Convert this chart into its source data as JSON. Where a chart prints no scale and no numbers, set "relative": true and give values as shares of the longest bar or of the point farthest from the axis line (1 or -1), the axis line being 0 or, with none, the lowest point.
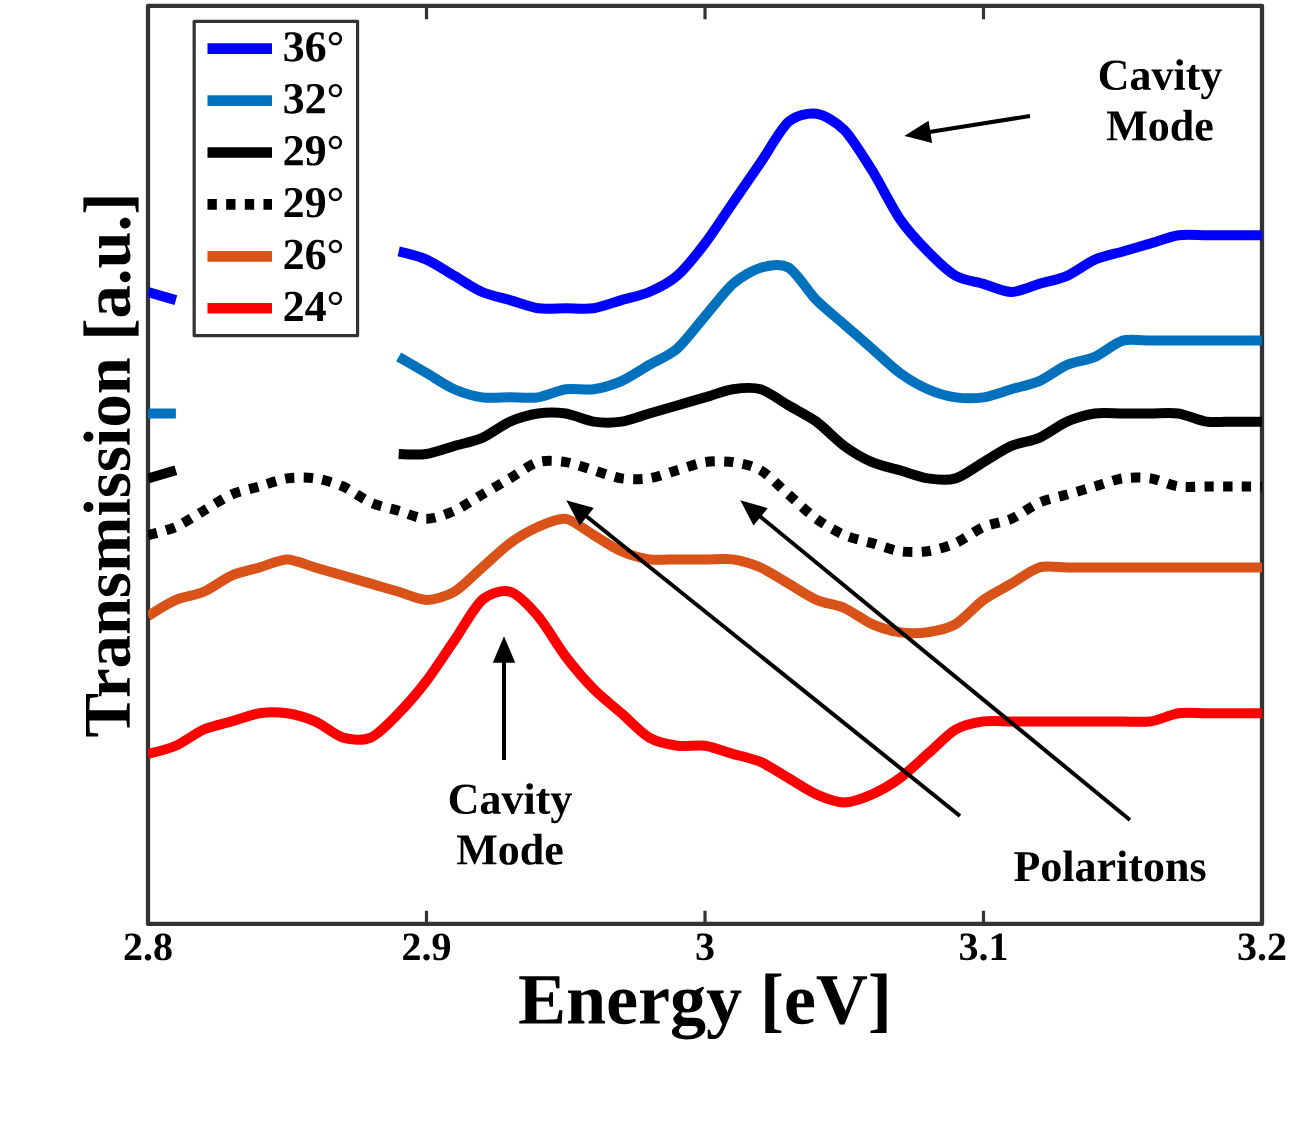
{
  "chart_data": {
    "type": "line",
    "relative": true,
    "xlabel": "Energy [eV]",
    "ylabel": "Transmission [a.u.]",
    "xlim": [
      2.8,
      3.2
    ],
    "xticks": [
      2.8,
      2.9,
      3,
      3.1,
      3.2
    ],
    "legend": "top left",
    "x": [
      2.8,
      2.81,
      2.82,
      2.83,
      2.84,
      2.85,
      2.86,
      2.87,
      2.88,
      2.89,
      2.9,
      2.91,
      2.92,
      2.93,
      2.94,
      2.95,
      2.96,
      2.97,
      2.98,
      2.99,
      3.0,
      3.01,
      3.02,
      3.03,
      3.04,
      3.05,
      3.06,
      3.07,
      3.08,
      3.09,
      3.1,
      3.11,
      3.12,
      3.13,
      3.14,
      3.15,
      3.16,
      3.17,
      3.18,
      3.19,
      3.2
    ],
    "series": [
      {
        "name": "36°",
        "color": "#0000ff",
        "line_style": "solid",
        "values": [
          0.78,
          0.77,
          null,
          null,
          null,
          null,
          null,
          null,
          null,
          0.83,
          0.82,
          0.8,
          0.78,
          0.77,
          0.76,
          0.76,
          0.76,
          0.77,
          0.78,
          0.8,
          0.84,
          0.89,
          0.94,
          0.99,
          1.0,
          0.98,
          0.93,
          0.87,
          0.83,
          0.8,
          0.79,
          0.78,
          0.79,
          0.8,
          0.82,
          0.83,
          0.84,
          0.85,
          0.85,
          0.85,
          0.85
        ]
      },
      {
        "name": "32°",
        "color": "#0072bd",
        "line_style": "solid",
        "values": [
          0.63,
          0.63,
          null,
          null,
          null,
          null,
          null,
          null,
          null,
          0.7,
          0.68,
          0.66,
          0.65,
          0.65,
          0.65,
          0.66,
          0.66,
          0.67,
          0.69,
          0.71,
          0.75,
          0.79,
          0.81,
          0.81,
          0.77,
          0.74,
          0.71,
          0.68,
          0.66,
          0.65,
          0.65,
          0.66,
          0.67,
          0.69,
          0.7,
          0.72,
          0.72,
          0.72,
          0.72,
          0.72,
          0.72
        ]
      },
      {
        "name": "29°",
        "color": "#000000",
        "line_style": "solid",
        "values": [
          0.55,
          0.56,
          null,
          null,
          null,
          null,
          null,
          null,
          null,
          0.58,
          0.58,
          0.59,
          0.6,
          0.62,
          0.63,
          0.63,
          0.62,
          0.62,
          0.63,
          0.64,
          0.65,
          0.66,
          0.66,
          0.64,
          0.62,
          0.59,
          0.57,
          0.56,
          0.55,
          0.55,
          0.57,
          0.59,
          0.6,
          0.62,
          0.63,
          0.63,
          0.63,
          0.63,
          0.62,
          0.62,
          0.62
        ]
      },
      {
        "name": "29°",
        "color": "#000000",
        "line_style": "dotted",
        "values": [
          0.48,
          0.49,
          0.51,
          0.53,
          0.54,
          0.55,
          0.55,
          0.54,
          0.52,
          0.51,
          0.5,
          0.51,
          0.53,
          0.55,
          0.57,
          0.57,
          0.56,
          0.55,
          0.55,
          0.56,
          0.57,
          0.57,
          0.56,
          0.53,
          0.5,
          0.48,
          0.47,
          0.46,
          0.46,
          0.47,
          0.49,
          0.5,
          0.52,
          0.53,
          0.54,
          0.55,
          0.55,
          0.54,
          0.54,
          0.54,
          0.54
        ]
      },
      {
        "name": "26°",
        "color": "#d95319",
        "line_style": "solid",
        "values": [
          0.38,
          0.4,
          0.41,
          0.43,
          0.44,
          0.45,
          0.44,
          0.43,
          0.42,
          0.41,
          0.4,
          0.41,
          0.44,
          0.47,
          0.49,
          0.5,
          0.48,
          0.46,
          0.45,
          0.45,
          0.45,
          0.45,
          0.44,
          0.42,
          0.4,
          0.39,
          0.37,
          0.36,
          0.36,
          0.37,
          0.4,
          0.42,
          0.44,
          0.44,
          0.44,
          0.44,
          0.44,
          0.44,
          0.44,
          0.44,
          0.44
        ]
      },
      {
        "name": "24°",
        "color": "#ff0000",
        "line_style": "solid",
        "values": [
          0.21,
          0.22,
          0.24,
          0.25,
          0.26,
          0.26,
          0.25,
          0.23,
          0.23,
          0.26,
          0.3,
          0.35,
          0.4,
          0.41,
          0.38,
          0.33,
          0.29,
          0.26,
          0.23,
          0.22,
          0.22,
          0.21,
          0.2,
          0.18,
          0.16,
          0.15,
          0.16,
          0.18,
          0.21,
          0.24,
          0.25,
          0.25,
          0.25,
          0.25,
          0.25,
          0.25,
          0.25,
          0.26,
          0.26,
          0.26,
          0.26
        ]
      }
    ],
    "annotations": [
      "Cavity Mode",
      "Cavity Mode",
      "Polaritons"
    ]
  }
}
